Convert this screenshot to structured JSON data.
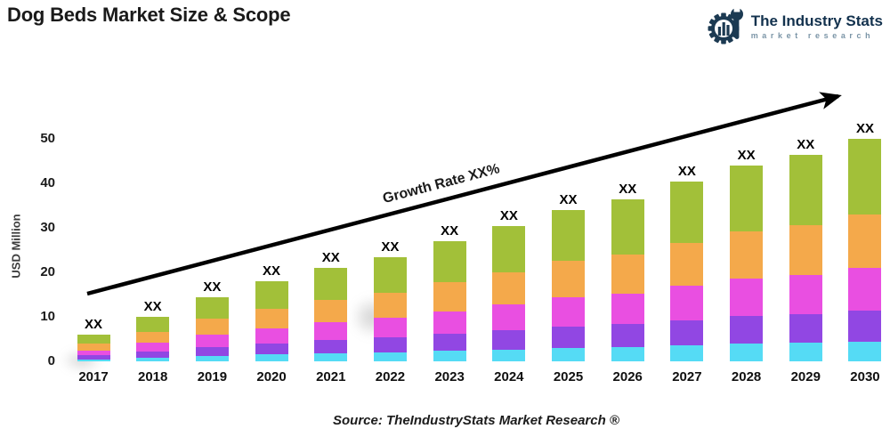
{
  "header": {
    "title": "Dog Beds Market Size & Scope",
    "logo": {
      "name": "The Industry Stats",
      "subtitle": "market research",
      "color": "#1c3a52"
    }
  },
  "chart_data": {
    "type": "bar",
    "stacked": true,
    "title": "Dog Beds Market Size & Scope",
    "xlabel": "",
    "ylabel": "USD Million",
    "ylim": [
      0,
      50
    ],
    "yticks": [
      0,
      10,
      20,
      30,
      40,
      50
    ],
    "grid": false,
    "legend": "none",
    "categories": [
      "2017",
      "2018",
      "2019",
      "2020",
      "2021",
      "2022",
      "2023",
      "2024",
      "2025",
      "2026",
      "2027",
      "2028",
      "2029",
      "2030"
    ],
    "bar_value_label": "XX",
    "series": [
      {
        "name": "cyan",
        "color": "#55DBF5",
        "values": [
          0.5,
          0.9,
          1.3,
          1.6,
          1.9,
          2.1,
          2.4,
          2.7,
          3.1,
          3.3,
          3.6,
          4.0,
          4.2,
          4.5
        ]
      },
      {
        "name": "purple",
        "color": "#9147E3",
        "values": [
          0.9,
          1.4,
          2.0,
          2.5,
          2.9,
          3.3,
          3.8,
          4.3,
          4.8,
          5.1,
          5.7,
          6.2,
          6.5,
          7.0
        ]
      },
      {
        "name": "magenta",
        "color": "#E94FE1",
        "values": [
          1.1,
          1.9,
          2.8,
          3.4,
          4.0,
          4.5,
          5.1,
          5.8,
          6.5,
          6.9,
          7.7,
          8.4,
          8.8,
          9.5
        ]
      },
      {
        "name": "orange",
        "color": "#F4A94B",
        "values": [
          1.5,
          2.4,
          3.5,
          4.3,
          5.0,
          5.6,
          6.5,
          7.3,
          8.2,
          8.8,
          9.7,
          10.6,
          11.2,
          12.0
        ]
      },
      {
        "name": "green",
        "color": "#A2C039",
        "values": [
          2.0,
          3.4,
          4.9,
          6.2,
          7.2,
          8.0,
          9.2,
          10.4,
          11.4,
          12.4,
          13.8,
          14.8,
          15.8,
          17.0
        ]
      }
    ],
    "totals": [
      6.0,
      10.0,
      14.5,
      18.0,
      21.0,
      23.5,
      27.0,
      30.5,
      34.0,
      36.5,
      40.5,
      44.0,
      46.5,
      50.0
    ],
    "annotation": {
      "text": "Growth Rate XX%"
    }
  },
  "footer": {
    "source": "Source: TheIndustryStats Market Research ®"
  }
}
